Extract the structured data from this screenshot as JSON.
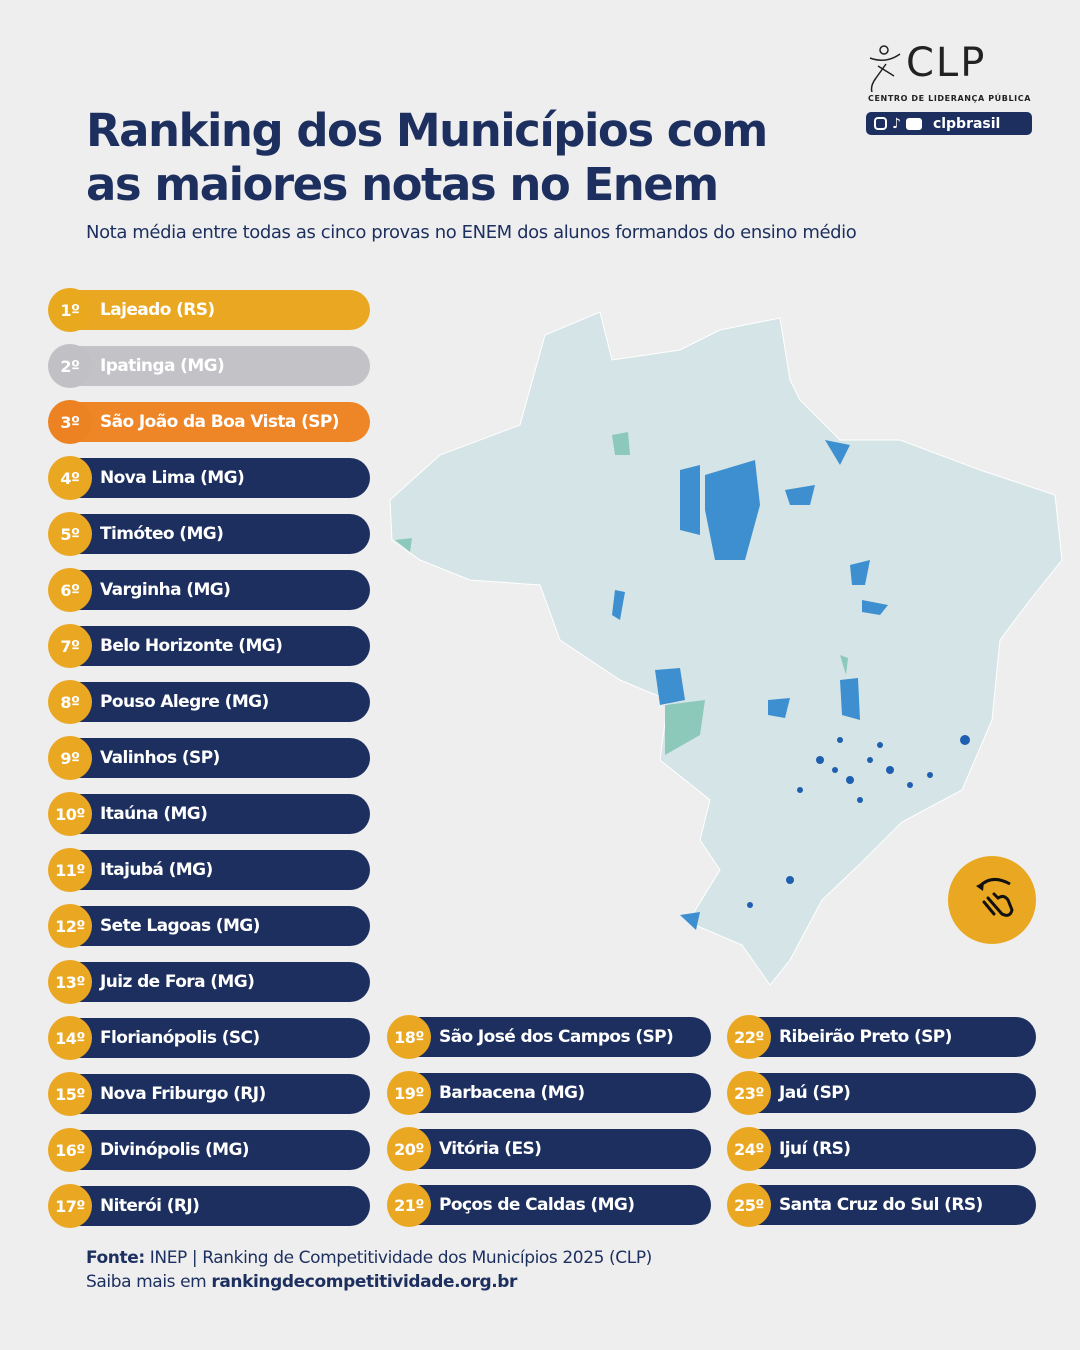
{
  "header": {
    "title_line1": "Ranking dos Municípios com",
    "title_line2": "as maiores notas no Enem",
    "subtitle": "Nota média entre todas as cinco provas no ENEM dos alunos formandos do ensino médio"
  },
  "logo": {
    "text": "CLP",
    "tagline": "CENTRO DE LIDERANÇA PÚBLICA",
    "social_handle": "clpbrasil",
    "social_icons": [
      "instagram-icon",
      "tiktok-icon",
      "youtube-icon"
    ]
  },
  "colors": {
    "navy": "#1c2f5e",
    "gold": "#eaa822",
    "silver": "#c3c2c6",
    "bronze": "#ee8527",
    "map_base": "#d5e4e6",
    "map_blue": "#3d8fd0",
    "map_dark": "#1f5fb0",
    "map_teal": "#8cc9bb"
  },
  "ranking": [
    {
      "rank": "1º",
      "name": "Lajeado (RS)"
    },
    {
      "rank": "2º",
      "name": "Ipatinga (MG)"
    },
    {
      "rank": "3º",
      "name": "São João da Boa Vista (SP)"
    },
    {
      "rank": "4º",
      "name": "Nova Lima (MG)"
    },
    {
      "rank": "5º",
      "name": "Timóteo (MG)"
    },
    {
      "rank": "6º",
      "name": "Varginha (MG)"
    },
    {
      "rank": "7º",
      "name": "Belo Horizonte (MG)"
    },
    {
      "rank": "8º",
      "name": "Pouso Alegre (MG)"
    },
    {
      "rank": "9º",
      "name": "Valinhos (SP)"
    },
    {
      "rank": "10º",
      "name": "Itaúna (MG)"
    },
    {
      "rank": "11º",
      "name": "Itajubá (MG)"
    },
    {
      "rank": "12º",
      "name": "Sete Lagoas (MG)"
    },
    {
      "rank": "13º",
      "name": "Juiz de Fora (MG)"
    },
    {
      "rank": "14º",
      "name": "Florianópolis (SC)"
    },
    {
      "rank": "15º",
      "name": "Nova Friburgo (RJ)"
    },
    {
      "rank": "16º",
      "name": "Divinópolis (MG)"
    },
    {
      "rank": "17º",
      "name": "Niterói (RJ)"
    },
    {
      "rank": "18º",
      "name": "São José dos Campos (SP)"
    },
    {
      "rank": "19º",
      "name": "Barbacena (MG)"
    },
    {
      "rank": "20º",
      "name": "Vitória (ES)"
    },
    {
      "rank": "21º",
      "name": "Poços de Caldas (MG)"
    },
    {
      "rank": "22º",
      "name": "Ribeirão Preto (SP)"
    },
    {
      "rank": "23º",
      "name": "Jaú (SP)"
    },
    {
      "rank": "24º",
      "name": "Ijuí (RS)"
    },
    {
      "rank": "25º",
      "name": "Santa Cruz do Sul (RS)"
    }
  ],
  "footer": {
    "source_label": "Fonte:",
    "source_text": " INEP | Ranking de Competitividade dos Municípios 2025 (CLP)",
    "more_label": "Saiba mais em ",
    "more_link": "rankingdecompetitividade.org.br"
  },
  "swipe_icon": "swipe-hand-icon"
}
